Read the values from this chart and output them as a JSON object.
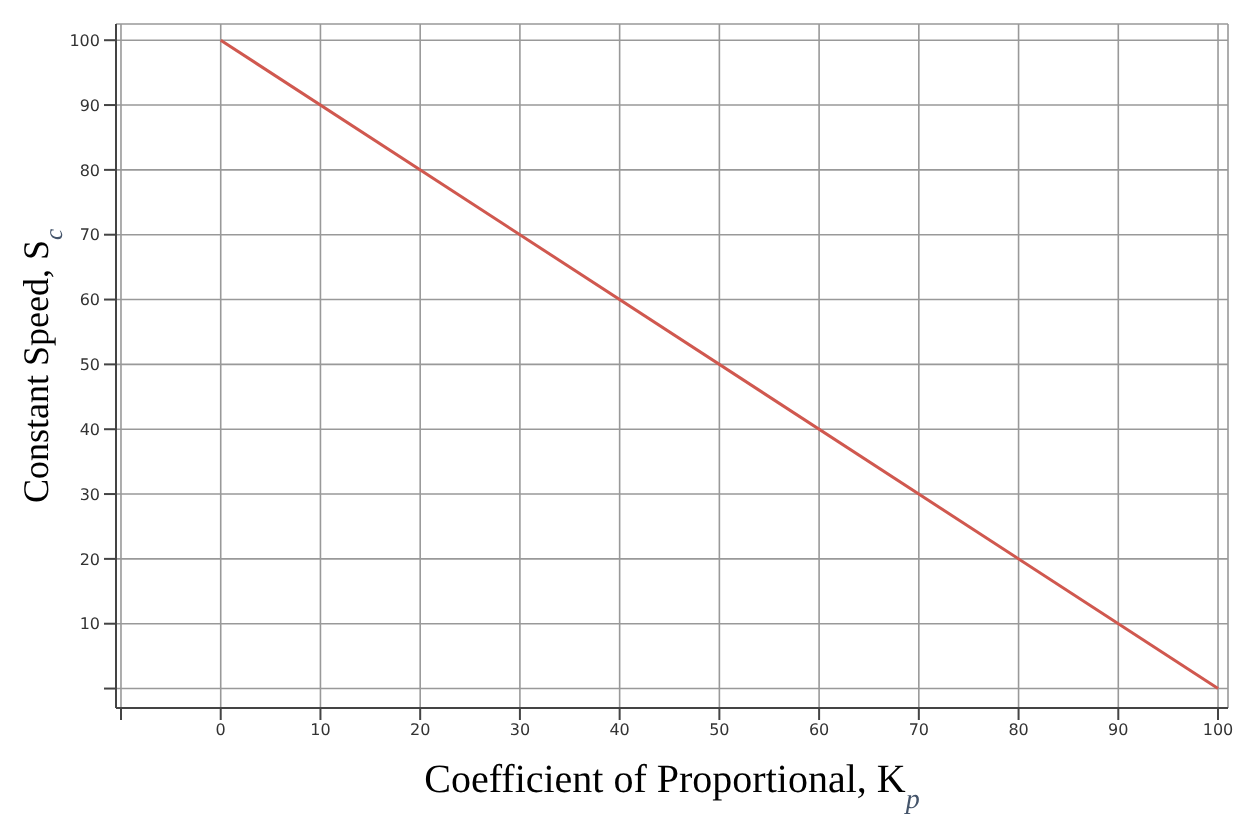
{
  "chart_data": {
    "type": "line",
    "xlabel": "Coefficient of Proportional, K$_{p}$",
    "ylabel": "Constant Speed, S$_{c}$",
    "x": [
      0,
      100
    ],
    "series": [
      {
        "color": "#d0584f",
        "values": [
          100,
          0
        ]
      }
    ],
    "xlim": [
      -10.5,
      101
    ],
    "ylim": [
      -3,
      102.5
    ],
    "xticks": [
      {
        "value": -10,
        "label": null
      },
      0,
      10,
      20,
      30,
      40,
      50,
      60,
      70,
      80,
      90,
      100
    ],
    "yticks": [
      {
        "value": 0,
        "label": null
      },
      10,
      20,
      30,
      40,
      50,
      60,
      70,
      80,
      90,
      100
    ],
    "grid": true,
    "marker": "none",
    "line_style": "solid"
  }
}
